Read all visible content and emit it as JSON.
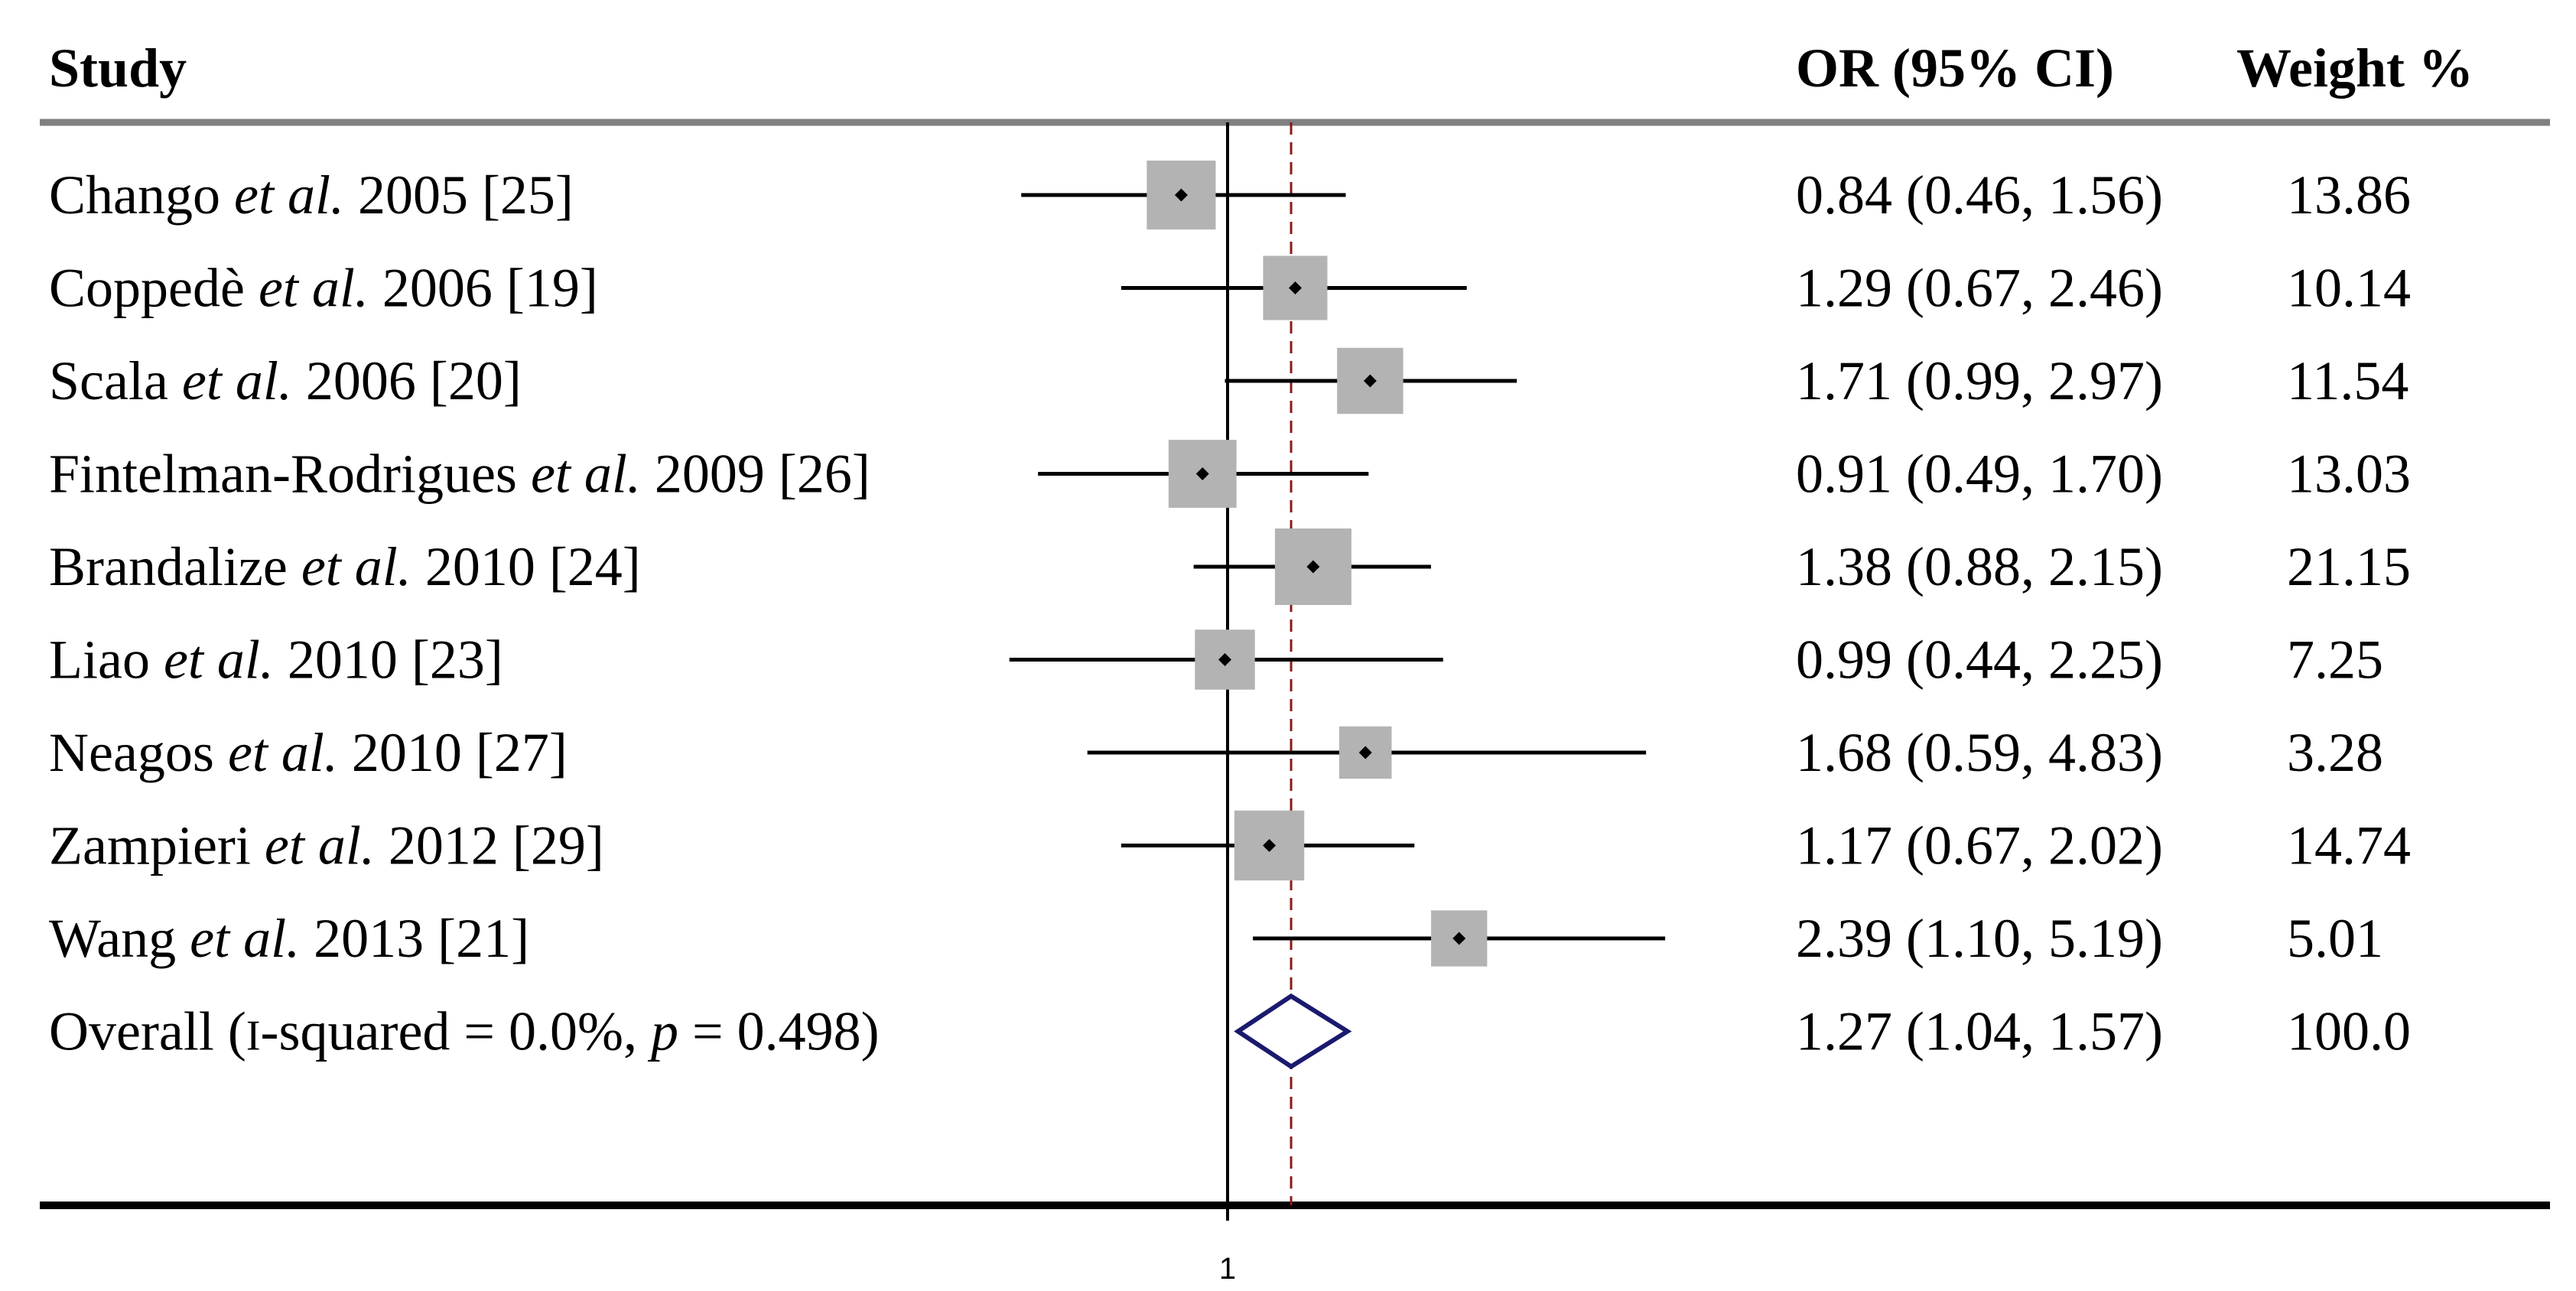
{
  "chart_data": {
    "type": "forest",
    "headers": {
      "study": "Study",
      "or": "OR (95% CI)",
      "weight": "Weight %"
    },
    "studies": [
      {
        "name_pre": "Chango ",
        "name_etal": "et al.",
        "name_post": " 2005 [25]",
        "or": 0.84,
        "lo": 0.46,
        "hi": 1.56,
        "or_text": "0.84 (0.46, 1.56)",
        "weight_text": "13.86",
        "weight": 13.86
      },
      {
        "name_pre": "Coppedè ",
        "name_etal": "et al.",
        "name_post": " 2006 [19]",
        "or": 1.29,
        "lo": 0.67,
        "hi": 2.46,
        "or_text": "1.29 (0.67, 2.46)",
        "weight_text": "10.14",
        "weight": 10.14
      },
      {
        "name_pre": "Scala ",
        "name_etal": "et al.",
        "name_post": " 2006 [20]",
        "or": 1.71,
        "lo": 0.99,
        "hi": 2.97,
        "or_text": "1.71 (0.99, 2.97)",
        "weight_text": "11.54",
        "weight": 11.54
      },
      {
        "name_pre": "Fintelman-Rodrigues ",
        "name_etal": "et al.",
        "name_post": " 2009 [26]",
        "or": 0.91,
        "lo": 0.49,
        "hi": 1.7,
        "or_text": "0.91 (0.49, 1.70)",
        "weight_text": "13.03",
        "weight": 13.03
      },
      {
        "name_pre": "Brandalize ",
        "name_etal": "et al.",
        "name_post": " 2010 [24]",
        "or": 1.38,
        "lo": 0.88,
        "hi": 2.15,
        "or_text": "1.38 (0.88, 2.15)",
        "weight_text": "21.15",
        "weight": 21.15
      },
      {
        "name_pre": "Liao ",
        "name_etal": "et al.",
        "name_post": " 2010 [23]",
        "or": 0.99,
        "lo": 0.44,
        "hi": 2.25,
        "or_text": "0.99 (0.44, 2.25)",
        "weight_text": "7.25",
        "weight": 7.25
      },
      {
        "name_pre": "Neagos ",
        "name_etal": "et al.",
        "name_post": " 2010 [27]",
        "or": 1.68,
        "lo": 0.59,
        "hi": 4.83,
        "or_text": "1.68 (0.59, 4.83)",
        "weight_text": "3.28",
        "weight": 3.28
      },
      {
        "name_pre": "Zampieri ",
        "name_etal": "et al.",
        "name_post": " 2012 [29]",
        "or": 1.17,
        "lo": 0.67,
        "hi": 2.02,
        "or_text": "1.17 (0.67, 2.02)",
        "weight_text": "14.74",
        "weight": 14.74
      },
      {
        "name_pre": "Wang ",
        "name_etal": "et al.",
        "name_post": " 2013 [21]",
        "or": 2.39,
        "lo": 1.1,
        "hi": 5.19,
        "or_text": "2.39 (1.10, 5.19)",
        "weight_text": "5.01",
        "weight": 5.01
      }
    ],
    "overall": {
      "label_pre": "Overall (",
      "label_i": "I",
      "label_mid": "-squared = 0.0%, ",
      "label_p": "p",
      "label_post": " = 0.498)",
      "or": 1.27,
      "lo": 1.04,
      "hi": 1.57,
      "or_text": "1.27 (1.04, 1.57)",
      "weight_text": "100.0"
    },
    "xaxis": {
      "scale": "log",
      "ticks": [
        {
          "value": 1,
          "label": "1"
        }
      ],
      "xlim": [
        0.33,
        5.19
      ]
    },
    "colors": {
      "square": "#b3b3b3",
      "diamond": "#1a1a6e",
      "reference_line": "#8b1a1a"
    }
  }
}
